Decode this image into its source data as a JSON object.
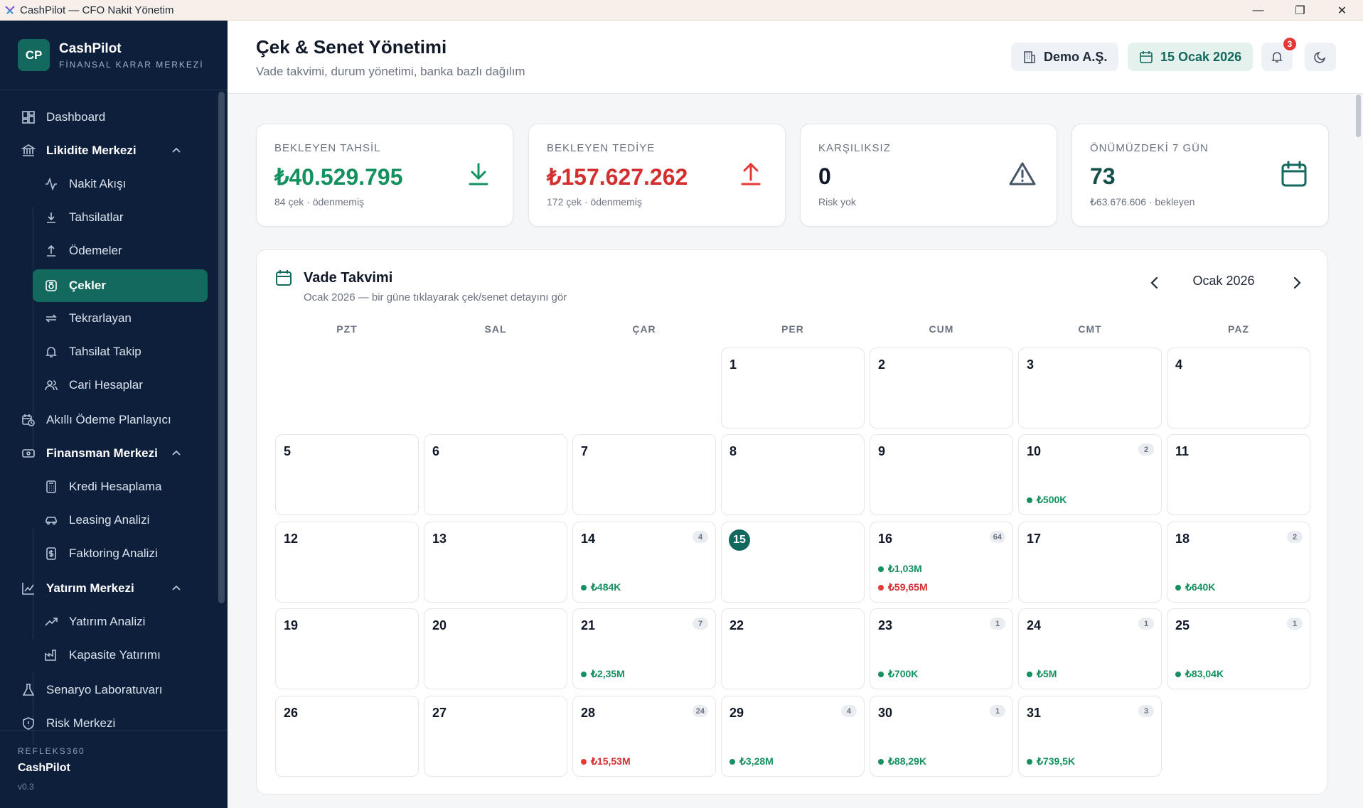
{
  "window": {
    "title": "CashPilot — CFO Nakit Yönetim"
  },
  "brand": {
    "initials": "CP",
    "name": "CashPilot",
    "subtitle": "FİNANSAL KARAR MERKEZİ"
  },
  "nav": {
    "dashboard": "Dashboard",
    "likidite": "Likidite Merkezi",
    "nakit_akisi": "Nakit Akışı",
    "tahsilatlar": "Tahsilatlar",
    "odemeler": "Ödemeler",
    "cekler": "Çekler",
    "tekrarlayan": "Tekrarlayan",
    "tahsilat_takip": "Tahsilat Takip",
    "cari": "Cari Hesaplar",
    "akilli": "Akıllı Ödeme Planlayıcı",
    "finansman": "Finansman Merkezi",
    "kredi": "Kredi Hesaplama",
    "leasing": "Leasing Analizi",
    "faktoring": "Faktoring Analizi",
    "yatirim": "Yatırım Merkezi",
    "yatirim_analizi": "Yatırım Analizi",
    "kapasite": "Kapasite Yatırımı",
    "senaryo": "Senaryo Laboratuvarı",
    "risk": "Risk Merkezi"
  },
  "footer": {
    "org": "REFLEKS360",
    "app": "CashPilot",
    "version": "v0.3"
  },
  "header": {
    "title": "Çek & Senet Yönetimi",
    "subtitle": "Vade takvimi, durum yönetimi, banka bazlı dağılım",
    "company": "Demo A.Ş.",
    "date": "15 Ocak 2026",
    "notifications": "3"
  },
  "kpis": {
    "tahsil": {
      "label": "BEKLEYEN TAHSİL",
      "value": "₺40.529.795",
      "sub": "84 çek · ödenmemiş"
    },
    "tediye": {
      "label": "BEKLEYEN TEDİYE",
      "value": "₺157.627.262",
      "sub": "172 çek · ödenmemiş"
    },
    "karsiliksiz": {
      "label": "KARŞILIKSIZ",
      "value": "0",
      "sub": "Risk yok"
    },
    "yedigun": {
      "label": "ÖNÜMÜZDEKİ 7 GÜN",
      "value": "73",
      "sub": "₺63.676.606 · bekleyen"
    }
  },
  "calendar": {
    "title": "Vade Takvimi",
    "subtitle": "Ocak 2026 — bir güne tıklayarak çek/senet detayını gör",
    "month": "Ocak 2026",
    "weekdays": [
      "PZT",
      "SAL",
      "ÇAR",
      "PER",
      "CUM",
      "CMT",
      "PAZ"
    ],
    "days": [
      {
        "d": "1"
      },
      {
        "d": "2"
      },
      {
        "d": "3"
      },
      {
        "d": "4"
      },
      {
        "d": "5"
      },
      {
        "d": "6"
      },
      {
        "d": "7"
      },
      {
        "d": "8"
      },
      {
        "d": "9"
      },
      {
        "d": "10",
        "count": "2",
        "in": "₺500K"
      },
      {
        "d": "11"
      },
      {
        "d": "12"
      },
      {
        "d": "13"
      },
      {
        "d": "14",
        "count": "4",
        "in": "₺484K"
      },
      {
        "d": "15",
        "today": true
      },
      {
        "d": "16",
        "count": "64",
        "in": "₺1,03M",
        "out": "₺59,65M"
      },
      {
        "d": "17"
      },
      {
        "d": "18",
        "count": "2",
        "in": "₺640K"
      },
      {
        "d": "19"
      },
      {
        "d": "20"
      },
      {
        "d": "21",
        "count": "7",
        "in": "₺2,35M"
      },
      {
        "d": "22"
      },
      {
        "d": "23",
        "count": "1",
        "in": "₺700K"
      },
      {
        "d": "24",
        "count": "1",
        "in": "₺5M"
      },
      {
        "d": "25",
        "count": "1",
        "in": "₺83,04K"
      },
      {
        "d": "26"
      },
      {
        "d": "27"
      },
      {
        "d": "28",
        "count": "24",
        "out": "₺15,53M"
      },
      {
        "d": "29",
        "count": "4",
        "in": "₺3,28M"
      },
      {
        "d": "30",
        "count": "1",
        "in": "₺88,29K"
      },
      {
        "d": "31",
        "count": "3",
        "in": "₺739,5K"
      }
    ]
  },
  "colors": {
    "sidebar": "#0d1f3a",
    "accent": "#13695d",
    "income": "#15915f",
    "expense": "#d32f2f"
  }
}
